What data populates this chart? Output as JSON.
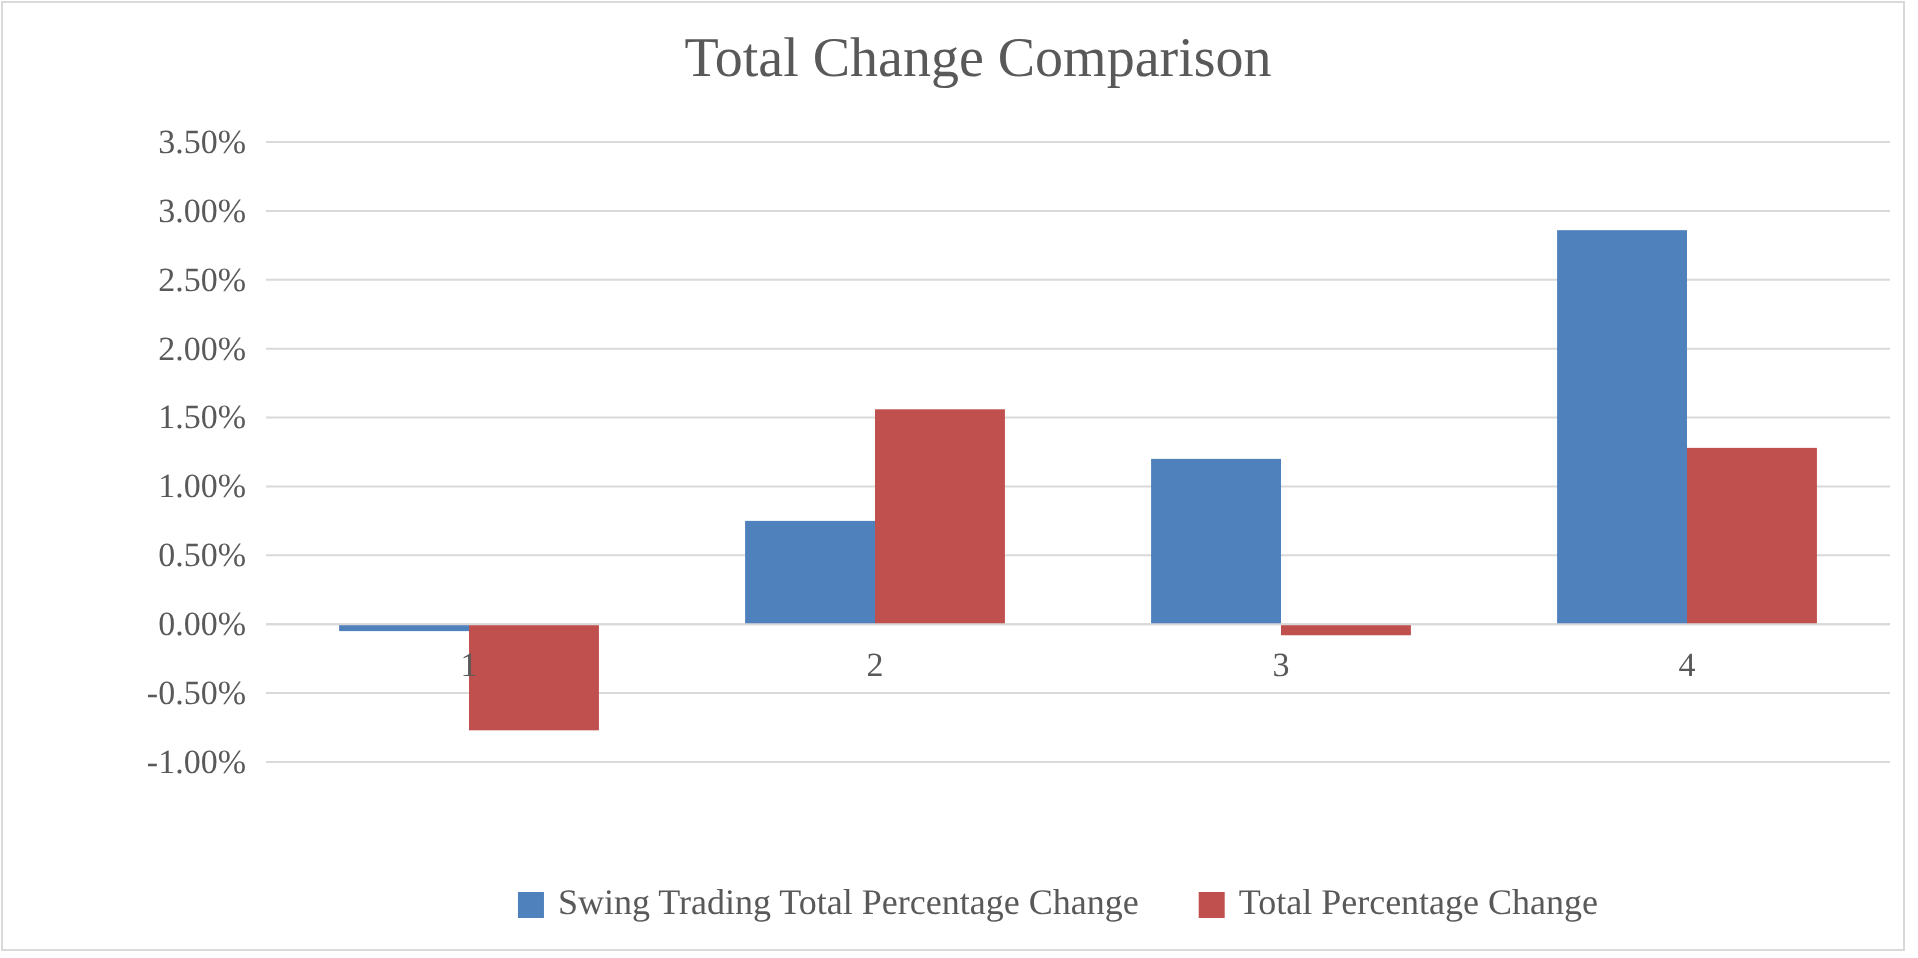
{
  "chart_data": {
    "type": "bar",
    "title": "Total Change Comparison",
    "categories": [
      "1",
      "2",
      "3",
      "4"
    ],
    "series": [
      {
        "name": "Swing Trading Total Percentage Change",
        "color": "#4f81bd",
        "values": [
          -0.05,
          0.75,
          1.2,
          2.86
        ]
      },
      {
        "name": "Total Percentage Change",
        "color": "#c0504d",
        "values": [
          -0.77,
          1.56,
          -0.08,
          1.28
        ]
      }
    ],
    "ylim": [
      -1,
      3.5
    ],
    "yticks": [
      {
        "value": -1,
        "label": "-1.00%"
      },
      {
        "value": -0.5,
        "label": "-0.50%"
      },
      {
        "value": 0,
        "label": "0.00%"
      },
      {
        "value": 0.5,
        "label": "0.50%"
      },
      {
        "value": 1,
        "label": "1.00%"
      },
      {
        "value": 1.5,
        "label": "1.50%"
      },
      {
        "value": 2,
        "label": "2.00%"
      },
      {
        "value": 2.5,
        "label": "2.50%"
      },
      {
        "value": 3,
        "label": "3.00%"
      },
      {
        "value": 3.5,
        "label": "3.50%"
      }
    ],
    "grid": "y",
    "legend": "bottom"
  }
}
